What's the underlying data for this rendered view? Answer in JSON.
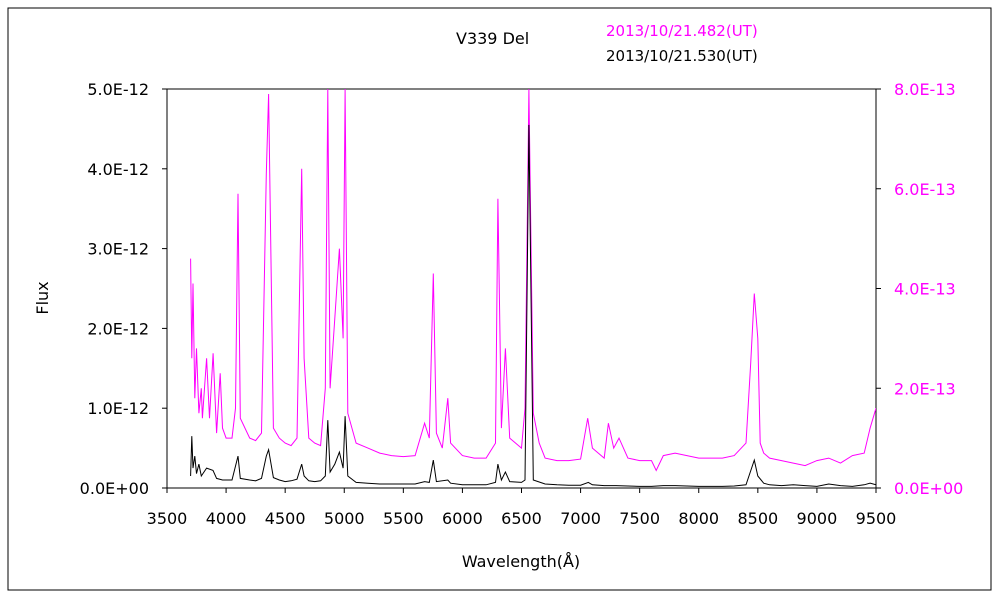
{
  "chart_data": {
    "type": "line",
    "title": "V339 Del",
    "xlabel": "Wavelength(Å)",
    "ylabel": "Flux",
    "xlim": [
      3500,
      9500
    ],
    "ylim_left": [
      0,
      5e-12
    ],
    "ylim_right": [
      0,
      8e-13
    ],
    "grid": false,
    "legend_placement": "top-right",
    "x_ticks": [
      "3500",
      "4000",
      "4500",
      "5000",
      "5500",
      "6000",
      "6500",
      "7000",
      "7500",
      "8000",
      "8500",
      "9000",
      "9500"
    ],
    "y_ticks_left": [
      "0.0E+00",
      "1.0E-12",
      "2.0E-12",
      "3.0E-12",
      "4.0E-12",
      "5.0E-12"
    ],
    "y_ticks_right": [
      "0.0E+00",
      "2.0E-13",
      "4.0E-13",
      "6.0E-13",
      "8.0E-13"
    ],
    "series": [
      {
        "name": "2013/10/21.482(UT)",
        "axis": "right",
        "color": "#ff00ff",
        "x": [
          3700,
          3710,
          3720,
          3735,
          3750,
          3770,
          3790,
          3800,
          3835,
          3860,
          3890,
          3920,
          3950,
          3970,
          4000,
          4050,
          4080,
          4101,
          4120,
          4200,
          4250,
          4300,
          4340,
          4360,
          4400,
          4450,
          4500,
          4550,
          4600,
          4640,
          4660,
          4700,
          4750,
          4800,
          4840,
          4861,
          4880,
          4920,
          4959,
          4990,
          5007,
          5030,
          5100,
          5200,
          5300,
          5400,
          5500,
          5600,
          5680,
          5720,
          5754,
          5780,
          5830,
          5876,
          5900,
          6000,
          6100,
          6200,
          6280,
          6300,
          6330,
          6364,
          6400,
          6450,
          6500,
          6530,
          6563,
          6600,
          6650,
          6700,
          6800,
          6900,
          7000,
          7060,
          7100,
          7200,
          7235,
          7280,
          7325,
          7400,
          7500,
          7600,
          7640,
          7700,
          7800,
          7900,
          8000,
          8100,
          8200,
          8300,
          8400,
          8440,
          8470,
          8500,
          8520,
          8550,
          8600,
          8700,
          8800,
          8900,
          9000,
          9100,
          9200,
          9300,
          9400,
          9450,
          9500
        ],
        "values": [
          4.6e-13,
          2.6e-13,
          4.1e-13,
          1.8e-13,
          2.8e-13,
          1.5e-13,
          2e-13,
          1.4e-13,
          2.6e-13,
          1.4e-13,
          2.7e-13,
          1.1e-13,
          2.3e-13,
          1.2e-13,
          1e-13,
          1e-13,
          1.6e-13,
          5.9e-13,
          1.4e-13,
          1e-13,
          9.5e-14,
          1.1e-13,
          6.3e-13,
          7.9e-13,
          1.2e-13,
          1e-13,
          9e-14,
          8.5e-14,
          1e-13,
          6.4e-13,
          2.6e-13,
          1e-13,
          9e-14,
          8.5e-14,
          2e-13,
          8e-13,
          2e-13,
          3.4e-13,
          4.8e-13,
          3e-13,
          8e-13,
          1.5e-13,
          9e-14,
          8e-14,
          7e-14,
          6.5e-14,
          6.3e-14,
          6.5e-14,
          1.3e-13,
          1e-13,
          4.3e-13,
          1.1e-13,
          8e-14,
          1.8e-13,
          9e-14,
          6.5e-14,
          6e-14,
          6e-14,
          9e-14,
          5.8e-13,
          1.2e-13,
          2.8e-13,
          1e-13,
          9e-14,
          8e-14,
          1.6e-13,
          8e-13,
          1.5e-13,
          9e-14,
          6e-14,
          5.5e-14,
          5.5e-14,
          5.8e-14,
          1.4e-13,
          8e-14,
          6e-14,
          1.3e-13,
          8e-14,
          1e-13,
          6e-14,
          5.5e-14,
          5.5e-14,
          3.5e-14,
          6.5e-14,
          7e-14,
          6.5e-14,
          6e-14,
          6e-14,
          6e-14,
          6.5e-14,
          9e-14,
          2.5e-13,
          3.9e-13,
          3e-13,
          9e-14,
          7e-14,
          6e-14,
          5.5e-14,
          5e-14,
          4.5e-14,
          5.5e-14,
          6e-14,
          5e-14,
          6.5e-14,
          7e-14,
          1.2e-13,
          1.6e-13
        ]
      },
      {
        "name": "2013/10/21.530(UT)",
        "axis": "left",
        "color": "#000000",
        "x": [
          3700,
          3710,
          3720,
          3735,
          3750,
          3770,
          3790,
          3835,
          3889,
          3920,
          3970,
          4000,
          4050,
          4101,
          4120,
          4200,
          4250,
          4300,
          4340,
          4360,
          4400,
          4450,
          4500,
          4550,
          4600,
          4640,
          4660,
          4700,
          4750,
          4800,
          4840,
          4861,
          4880,
          4920,
          4959,
          4990,
          5007,
          5030,
          5100,
          5200,
          5300,
          5400,
          5500,
          5600,
          5680,
          5720,
          5754,
          5780,
          5876,
          5900,
          6000,
          6100,
          6200,
          6280,
          6300,
          6330,
          6364,
          6400,
          6500,
          6530,
          6563,
          6600,
          6700,
          6800,
          6900,
          7000,
          7065,
          7100,
          7200,
          7300,
          7400,
          7500,
          7600,
          7700,
          7800,
          7900,
          8000,
          8100,
          8200,
          8300,
          8400,
          8470,
          8500,
          8550,
          8600,
          8700,
          8800,
          8900,
          9000,
          9100,
          9200,
          9300,
          9400,
          9450,
          9500
        ],
        "values": [
          1.5e-13,
          6.5e-13,
          2.5e-13,
          4e-13,
          1.8e-13,
          3e-13,
          1.5e-13,
          2.5e-13,
          2.2e-13,
          1.2e-13,
          1e-13,
          1e-13,
          1e-13,
          4e-13,
          1.2e-13,
          1e-13,
          9e-14,
          1.2e-13,
          4e-13,
          4.8e-13,
          1.3e-13,
          1e-13,
          8e-14,
          9e-14,
          1.1e-13,
          3e-13,
          1.5e-13,
          9e-14,
          8e-14,
          9e-14,
          1.5e-13,
          8.5e-13,
          2e-13,
          3e-13,
          4.5e-13,
          2.5e-13,
          9e-13,
          1.5e-13,
          7e-14,
          6e-14,
          5e-14,
          5e-14,
          5e-14,
          5e-14,
          8e-14,
          7e-14,
          3.5e-13,
          8e-14,
          1e-13,
          6e-14,
          4e-14,
          4e-14,
          4e-14,
          7e-14,
          3e-13,
          1e-13,
          2e-13,
          8e-14,
          7e-14,
          1e-13,
          4.55e-12,
          1e-13,
          5e-14,
          4e-14,
          3.5e-14,
          3.5e-14,
          7e-14,
          4e-14,
          3e-14,
          3e-14,
          2.5e-14,
          2e-14,
          2e-14,
          3e-14,
          3e-14,
          2.5e-14,
          2e-14,
          2e-14,
          2e-14,
          2.5e-14,
          4e-14,
          3.5e-13,
          1.5e-13,
          6e-14,
          4e-14,
          3e-14,
          4e-14,
          3e-14,
          2e-14,
          5e-14,
          3e-14,
          2e-14,
          4e-14,
          6e-14,
          4e-14
        ]
      }
    ]
  }
}
